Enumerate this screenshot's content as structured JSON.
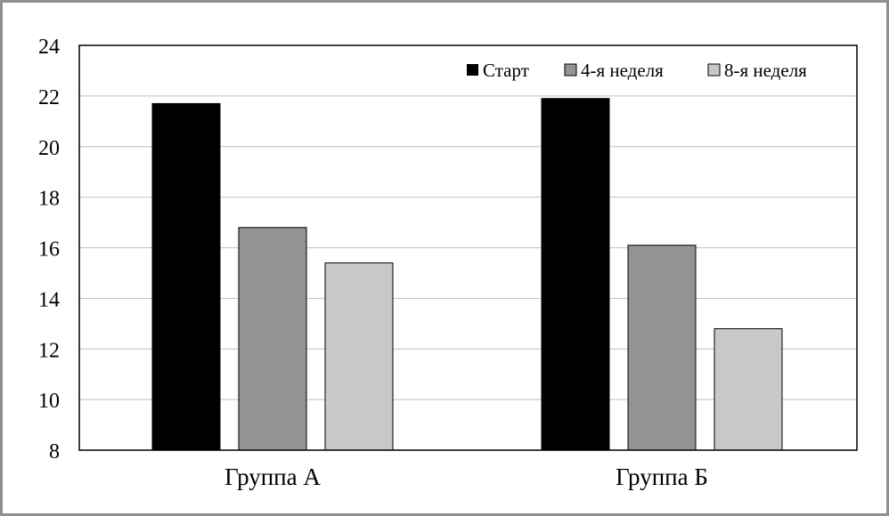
{
  "chart_data": {
    "type": "bar",
    "categories": [
      "Группа А",
      "Группа Б"
    ],
    "series": [
      {
        "name": "Старт",
        "values": [
          21.7,
          21.9
        ],
        "color": "#000000"
      },
      {
        "name": "4-я неделя",
        "values": [
          16.8,
          16.1
        ],
        "color": "#939393"
      },
      {
        "name": "8-я неделя",
        "values": [
          15.4,
          12.8
        ],
        "color": "#c8c8c8"
      }
    ],
    "ylim": [
      8,
      24
    ],
    "yticks": [
      8,
      10,
      12,
      14,
      16,
      18,
      20,
      22,
      24
    ],
    "grid": true,
    "legend_position": "top-right"
  }
}
